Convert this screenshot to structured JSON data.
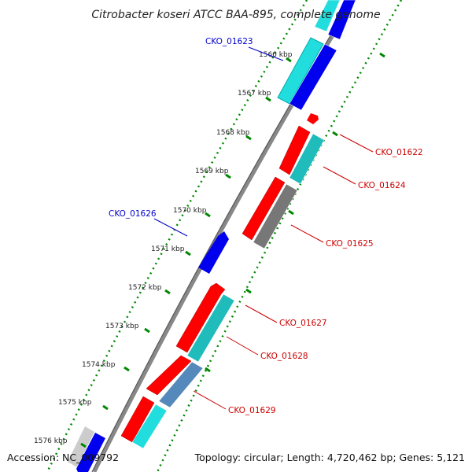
{
  "title": "Citrobacter koseri ATCC BAA-895, complete genome",
  "accession": "Accession: NC_009792",
  "summary": "Topology: circular; Length: 4,720,462 bp; Genes: 5,121",
  "colors": {
    "forward_cds": "#ff0000",
    "reverse_cds": "#0000ee",
    "forward_label": "#cc0000",
    "reverse_label": "#0000cc",
    "cyan": "#22dddd",
    "teal": "#20bbbb",
    "gray": "#777777",
    "steel": "#5588bb",
    "backbone": "#777777",
    "tick_major": "#008800"
  },
  "ticks": [
    "1566 kbp",
    "1567 kbp",
    "1568 kbp",
    "1569 kbp",
    "1570 kbp",
    "1571 kbp",
    "1572 kbp",
    "1573 kbp",
    "1574 kbp",
    "1575 kbp",
    "1576 kbp"
  ],
  "gene_labels": {
    "reverse": [
      "CKO_01623",
      "CKO_01626"
    ],
    "forward": [
      "CKO_01622",
      "CKO_01624",
      "CKO_01625",
      "CKO_01627",
      "CKO_01628",
      "CKO_01629"
    ]
  }
}
